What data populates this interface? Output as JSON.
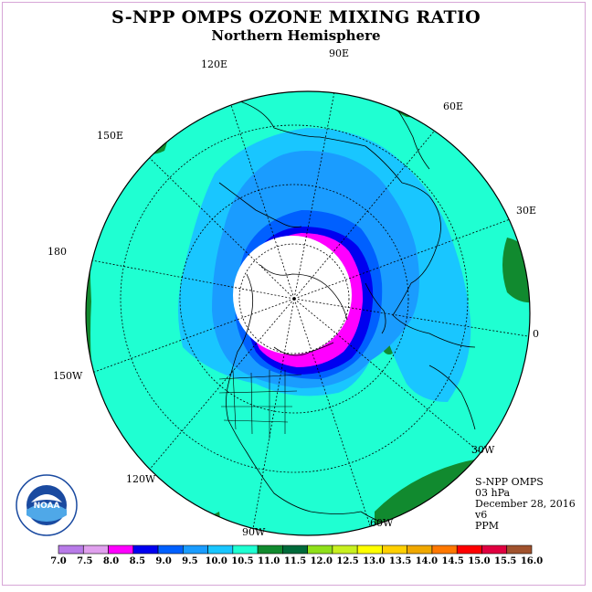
{
  "header": {
    "title": "S-NPP OMPS OZONE MIXING RATIO",
    "subtitle": "Northern Hemisphere"
  },
  "map": {
    "projection": "polar stereographic",
    "longitude_labels": [
      {
        "text": "90E",
        "key": "lon_90e"
      },
      {
        "text": "60E",
        "key": "lon_60e"
      },
      {
        "text": "120E",
        "key": "lon_120e"
      },
      {
        "text": "150E",
        "key": "lon_150e"
      },
      {
        "text": "30E",
        "key": "lon_30e"
      },
      {
        "text": "180",
        "key": "lon_180"
      },
      {
        "text": "0",
        "key": "lon_0"
      },
      {
        "text": "150W",
        "key": "lon_150w"
      },
      {
        "text": "30W",
        "key": "lon_30w"
      },
      {
        "text": "120W",
        "key": "lon_120w"
      },
      {
        "text": "60W",
        "key": "lon_60w"
      },
      {
        "text": "90W",
        "key": "lon_90w"
      }
    ],
    "colors": {
      "cyan": "#1fffd2",
      "light_blue": "#19c6ff",
      "mid_blue": "#1a9cff",
      "deep_blue": "#0060ff",
      "navy": "#0000f0",
      "magenta": "#ff00ff",
      "green": "#118a2f",
      "dark_green": "#006a3a",
      "polar_night": "#ffffff"
    }
  },
  "info": {
    "instrument": "S-NPP OMPS",
    "level": "03 hPa",
    "date": "December 28, 2016",
    "version": "v6",
    "units": "PPM"
  },
  "colorbar": {
    "tick_labels": [
      "7.0",
      "7.5",
      "8.0",
      "8.5",
      "9.0",
      "9.5",
      "10.0",
      "10.5",
      "11.0",
      "11.5",
      "12.0",
      "12.5",
      "13.0",
      "13.5",
      "14.0",
      "14.5",
      "15.0",
      "15.5",
      "16.0"
    ],
    "colors": [
      "#b87be8",
      "#e0a0ee",
      "#ff00ff",
      "#0000f0",
      "#0060ff",
      "#1a9cff",
      "#19c6ff",
      "#1fffd2",
      "#118a2f",
      "#006a3a",
      "#8fe01a",
      "#c8f020",
      "#ffff00",
      "#ffd000",
      "#f0a800",
      "#ff7800",
      "#ff0000",
      "#e00040",
      "#a0522d"
    ]
  },
  "logo": {
    "text": "NOAA",
    "ring_text": "NATIONAL OCEANIC AND ATMOSPHERIC ADMINISTRATION · U.S. DEPARTMENT OF COMMERCE"
  }
}
